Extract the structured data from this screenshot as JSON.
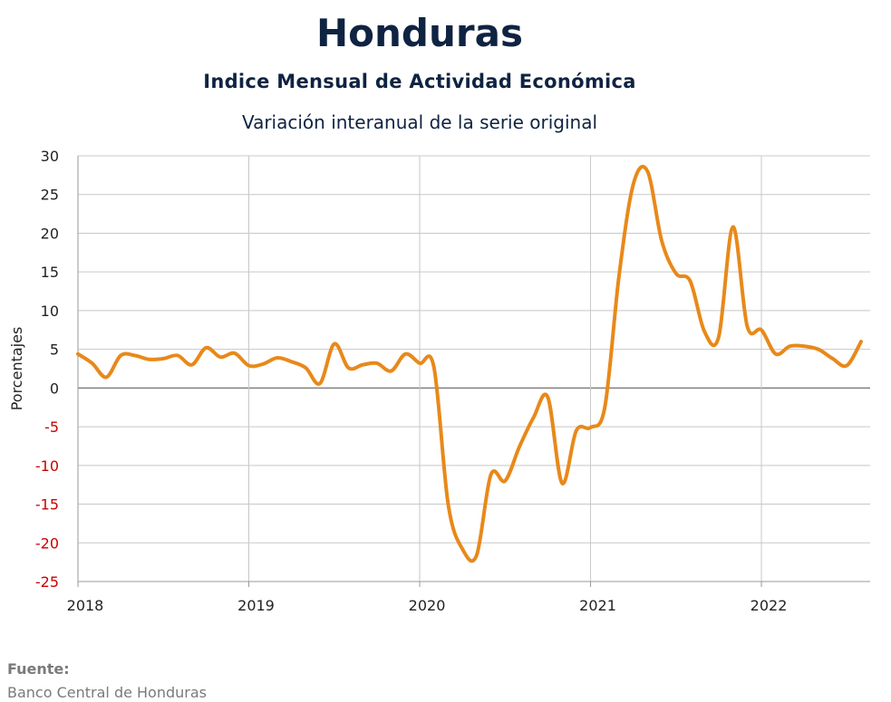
{
  "header": {
    "title": "Honduras",
    "subtitle": "Indice Mensual de  Actividad Económica",
    "subtitle2": "Variación interanual de la serie original"
  },
  "footer": {
    "label": "Fuente:",
    "source": "Banco Central de Honduras"
  },
  "colors": {
    "line": "#e8891a",
    "negative_tick": "#cc0000",
    "positive_tick": "#222222",
    "grid": "#c8c8c8",
    "zero_line": "#808080"
  },
  "chart_data": {
    "type": "line",
    "title": "Honduras",
    "subtitle": "Indice Mensual de  Actividad Económica",
    "ylabel": "Porcentajes",
    "xlabel": "",
    "ylim": [
      -25,
      30
    ],
    "yticks": [
      30,
      25,
      20,
      15,
      10,
      5,
      0,
      -5,
      -10,
      -15,
      -20,
      -25
    ],
    "xticks": [
      "2018",
      "2019",
      "2020",
      "2021",
      "2022"
    ],
    "grid": true,
    "x_start": "2018-01",
    "x_end": "2022-08",
    "series": [
      {
        "values": [
          4.4,
          3.2,
          1.4,
          4.2,
          4.2,
          3.7,
          3.8,
          4.2,
          3.0,
          5.2,
          4.0,
          4.5,
          2.9,
          3.1,
          3.9,
          3.4,
          2.6,
          0.6,
          5.7,
          2.6,
          3.0,
          3.2,
          2.2,
          4.4,
          3.2,
          2.7,
          -15.0,
          -20.8,
          -21.6,
          -11.2,
          -12.0,
          -7.6,
          -3.8,
          -1.2,
          -12.3,
          -5.5,
          -5.1,
          -2.5,
          14.5,
          26.3,
          28.0,
          19.0,
          14.8,
          13.8,
          7.3,
          6.6,
          20.8,
          8.0,
          7.5,
          4.4,
          5.4,
          5.4,
          5.0,
          3.8,
          2.9,
          6.0
        ]
      }
    ]
  }
}
